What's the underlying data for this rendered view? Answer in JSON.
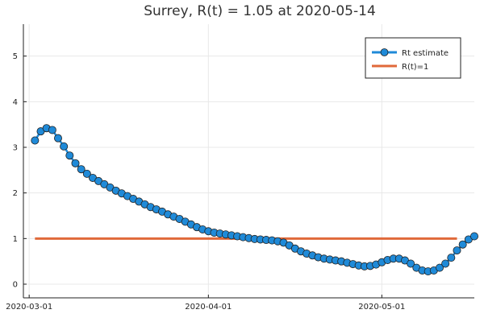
{
  "chart_data": {
    "type": "line",
    "title": "Surrey, R(t) = 1.05 at 2020-05-14",
    "xlabel": "",
    "ylabel": "",
    "x_start": "2020-03-02",
    "x_end": "2020-05-14",
    "xlim": [
      "2020-02-29",
      "2020-05-17"
    ],
    "ylim": [
      -0.3,
      5.7
    ],
    "xticks": [
      {
        "label": "2020-03-01",
        "date": "2020-03-01"
      },
      {
        "label": "2020-04-01",
        "date": "2020-04-01"
      },
      {
        "label": "2020-05-01",
        "date": "2020-05-01"
      }
    ],
    "yticks": [
      0,
      1,
      2,
      3,
      4,
      5
    ],
    "grid": true,
    "legend_position": "top-right",
    "series": [
      {
        "name": "Rt estimate",
        "color": "#1f8ad8",
        "marker": "circle",
        "values": [
          3.15,
          3.35,
          3.42,
          3.38,
          3.2,
          3.02,
          2.82,
          2.65,
          2.52,
          2.42,
          2.33,
          2.26,
          2.19,
          2.12,
          2.05,
          1.99,
          1.93,
          1.87,
          1.81,
          1.75,
          1.69,
          1.64,
          1.59,
          1.53,
          1.48,
          1.43,
          1.37,
          1.31,
          1.25,
          1.2,
          1.16,
          1.13,
          1.11,
          1.09,
          1.07,
          1.05,
          1.03,
          1.01,
          0.99,
          0.98,
          0.97,
          0.96,
          0.94,
          0.91,
          0.85,
          0.78,
          0.72,
          0.67,
          0.63,
          0.59,
          0.56,
          0.54,
          0.52,
          0.5,
          0.47,
          0.44,
          0.41,
          0.39,
          0.4,
          0.43,
          0.48,
          0.53,
          0.56,
          0.56,
          0.52,
          0.45,
          0.36,
          0.3,
          0.28,
          0.3,
          0.36,
          0.45,
          0.58,
          0.74,
          0.87,
          0.98,
          1.05
        ]
      },
      {
        "name": "R(t)=1",
        "color": "#e0693a",
        "marker": "none",
        "values": [
          1,
          1
        ]
      }
    ]
  }
}
